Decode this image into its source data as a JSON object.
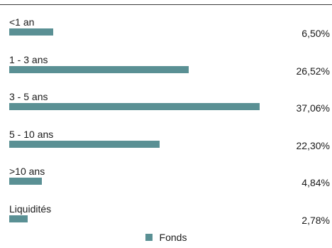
{
  "chart_data": {
    "type": "bar",
    "orientation": "horizontal",
    "categories": [
      "<1 an",
      "1 - 3 ans",
      "3 - 5 ans",
      "5 - 10 ans",
      ">10 ans",
      "Liquidités"
    ],
    "series": [
      {
        "name": "Fonds",
        "values": [
          6.5,
          26.52,
          37.06,
          22.3,
          4.84,
          2.78
        ],
        "value_labels": [
          "6,50%",
          "26,52%",
          "37,06%",
          "22,30%",
          "4,84%",
          "2,78%"
        ]
      }
    ],
    "xlim": [
      0,
      37.06
    ],
    "grid": false,
    "legend_position": "bottom-center",
    "bar_color": "#5a9094"
  }
}
